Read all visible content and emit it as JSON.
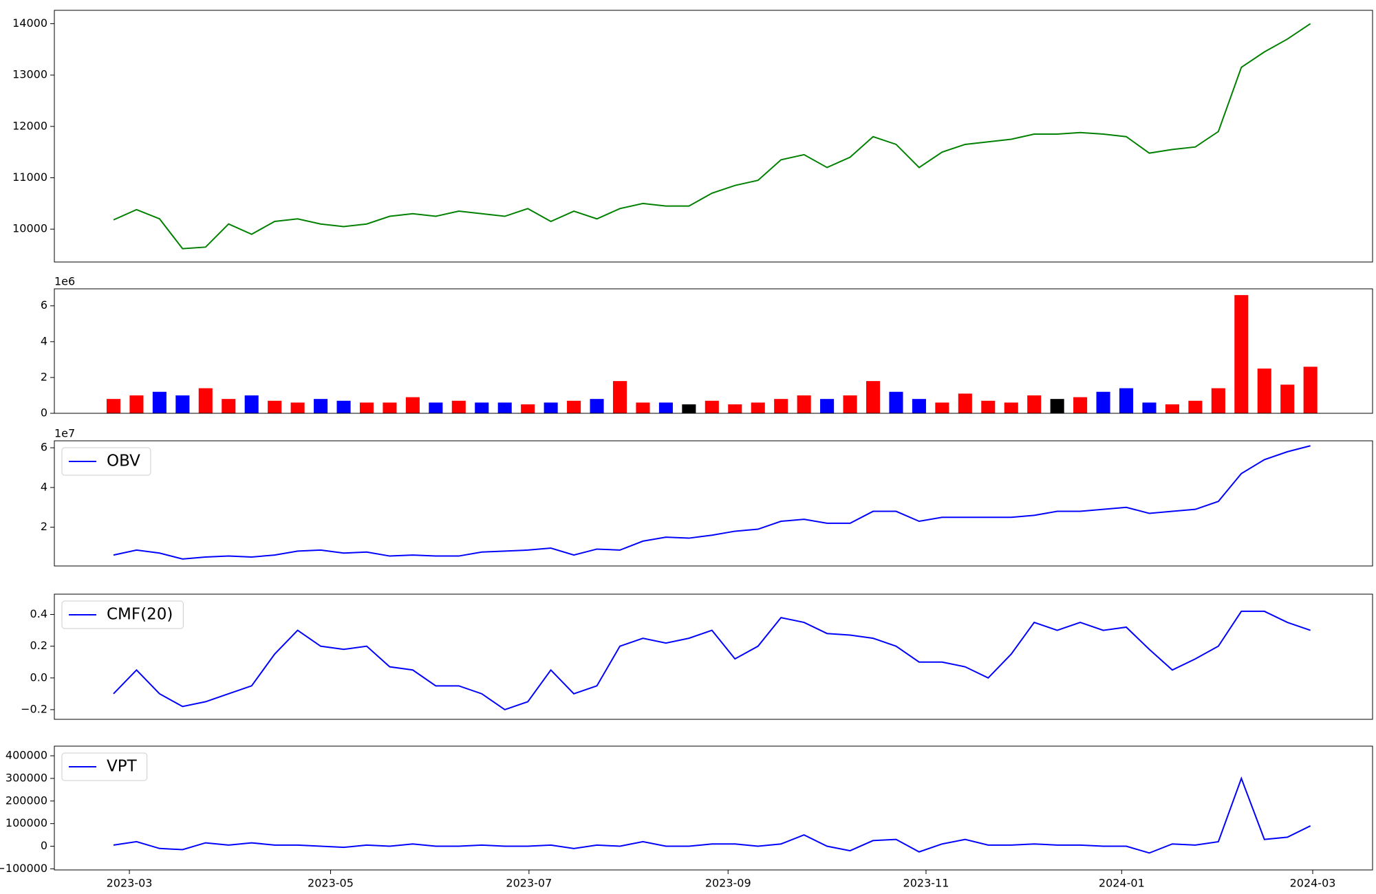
{
  "chart_data": [
    {
      "type": "line",
      "color": "green",
      "values": [
        10180,
        10380,
        10200,
        9620,
        9650,
        10100,
        9900,
        10150,
        10200,
        10100,
        10050,
        10100,
        10250,
        10300,
        10250,
        10350,
        10300,
        10250,
        10400,
        10150,
        10350,
        10200,
        10400,
        10500,
        10450,
        10450,
        10700,
        10850,
        10950,
        11350,
        11450,
        11200,
        11400,
        11800,
        11650,
        11200,
        11500,
        11650,
        11700,
        11750,
        11850,
        11850,
        11880,
        11850,
        11800,
        11480,
        11550,
        11600,
        11900,
        13150,
        13450,
        13700,
        14000
      ],
      "xlim": [
        -2.57,
        54.7
      ],
      "ylim": [
        9360,
        14260
      ],
      "yticks": [
        10000,
        11000,
        12000,
        13000,
        14000
      ]
    },
    {
      "type": "bar",
      "offset_label": "1e6",
      "values": [
        0.8,
        1.0,
        1.2,
        1.0,
        1.4,
        0.8,
        1.0,
        0.7,
        0.6,
        0.8,
        0.7,
        0.6,
        0.6,
        0.9,
        0.6,
        0.7,
        0.6,
        0.6,
        0.5,
        0.6,
        0.7,
        0.8,
        1.8,
        0.6,
        0.6,
        0.5,
        0.7,
        0.5,
        0.6,
        0.8,
        1.0,
        0.8,
        1.0,
        1.8,
        1.2,
        0.8,
        0.6,
        1.1,
        0.7,
        0.6,
        1.0,
        0.8,
        0.9,
        1.2,
        1.4,
        0.6,
        0.5,
        0.7,
        1.4,
        6.6,
        2.5,
        1.6,
        2.6
      ],
      "colors": [
        "red",
        "red",
        "blue",
        "blue",
        "red",
        "red",
        "blue",
        "red",
        "red",
        "blue",
        "blue",
        "red",
        "red",
        "red",
        "blue",
        "red",
        "blue",
        "blue",
        "red",
        "blue",
        "red",
        "blue",
        "red",
        "red",
        "blue",
        "black",
        "red",
        "red",
        "red",
        "red",
        "red",
        "blue",
        "red",
        "red",
        "blue",
        "blue",
        "red",
        "red",
        "red",
        "red",
        "red",
        "black",
        "red",
        "blue",
        "blue",
        "blue",
        "red",
        "red",
        "red",
        "red",
        "red",
        "red",
        "red"
      ],
      "xlim": [
        -2.57,
        54.7
      ],
      "ylim": [
        0,
        6.95
      ],
      "yticks": [
        0,
        2,
        4,
        6
      ]
    },
    {
      "type": "line",
      "offset_label": "1e7",
      "legend": "upper left",
      "series": [
        {
          "name": "OBV",
          "color": "blue",
          "values": [
            0.6,
            0.85,
            0.7,
            0.4,
            0.5,
            0.55,
            0.5,
            0.6,
            0.8,
            0.85,
            0.7,
            0.75,
            0.55,
            0.6,
            0.55,
            0.55,
            0.75,
            0.8,
            0.85,
            0.95,
            0.6,
            0.9,
            0.85,
            1.3,
            1.5,
            1.45,
            1.6,
            1.8,
            1.9,
            2.3,
            2.4,
            2.2,
            2.2,
            2.8,
            2.8,
            2.3,
            2.5,
            2.5,
            2.5,
            2.5,
            2.6,
            2.8,
            2.8,
            2.9,
            3.0,
            2.7,
            2.8,
            2.9,
            3.3,
            4.7,
            5.4,
            5.8,
            6.1
          ]
        }
      ],
      "xlim": [
        -2.57,
        54.7
      ],
      "ylim": [
        0.05,
        6.35
      ],
      "yticks": [
        2,
        4,
        6
      ]
    },
    {
      "type": "line",
      "legend": "upper left",
      "series": [
        {
          "name": "CMF(20)",
          "color": "blue",
          "values": [
            -0.1,
            0.05,
            -0.1,
            -0.18,
            -0.15,
            -0.1,
            -0.05,
            0.15,
            0.3,
            0.2,
            0.18,
            0.2,
            0.07,
            0.05,
            -0.05,
            -0.05,
            -0.1,
            -0.2,
            -0.15,
            0.05,
            -0.1,
            -0.05,
            0.2,
            0.25,
            0.22,
            0.25,
            0.3,
            0.12,
            0.2,
            0.38,
            0.35,
            0.28,
            0.27,
            0.25,
            0.2,
            0.1,
            0.1,
            0.07,
            0.0,
            0.15,
            0.35,
            0.3,
            0.35,
            0.3,
            0.32,
            0.18,
            0.05,
            0.12,
            0.2,
            0.42,
            0.42,
            0.35,
            0.3
          ]
        }
      ],
      "xlim": [
        -2.57,
        54.7
      ],
      "ylim": [
        -0.261,
        0.528
      ],
      "yticks": [
        {
          "value": -0.2,
          "label": "−0.2"
        },
        {
          "value": 0.0,
          "label": "0.0"
        },
        0.2,
        0.4
      ]
    },
    {
      "type": "line",
      "legend": "upper left",
      "series": [
        {
          "name": "VPT",
          "color": "blue",
          "values": [
            5000,
            20000,
            -10000,
            -15000,
            15000,
            5000,
            15000,
            5000,
            5000,
            0,
            -5000,
            5000,
            0,
            10000,
            0,
            0,
            5000,
            0,
            0,
            5000,
            -10000,
            5000,
            0,
            20000,
            0,
            0,
            10000,
            10000,
            0,
            10000,
            50000,
            0,
            -20000,
            25000,
            30000,
            -25000,
            10000,
            30000,
            5000,
            5000,
            10000,
            5000,
            5000,
            0,
            0,
            -30000,
            10000,
            5000,
            20000,
            300000,
            30000,
            40000,
            90000
          ]
        }
      ],
      "xlim": [
        -2.57,
        54.7
      ],
      "ylim": [
        -104900,
        442700
      ],
      "yticks": [
        {
          "value": -100000,
          "label": "−100000"
        },
        0,
        100000,
        200000,
        300000,
        400000
      ],
      "xticks": [
        {
          "value": 0.69,
          "label": "2023-03"
        },
        {
          "value": 9.43,
          "label": "2023-05"
        },
        {
          "value": 18.05,
          "label": "2023-07"
        },
        {
          "value": 26.7,
          "label": "2023-09"
        },
        {
          "value": 35.3,
          "label": "2023-11"
        },
        {
          "value": 43.8,
          "label": "2024-01"
        },
        {
          "value": 52.1,
          "label": "2024-03"
        }
      ]
    }
  ]
}
